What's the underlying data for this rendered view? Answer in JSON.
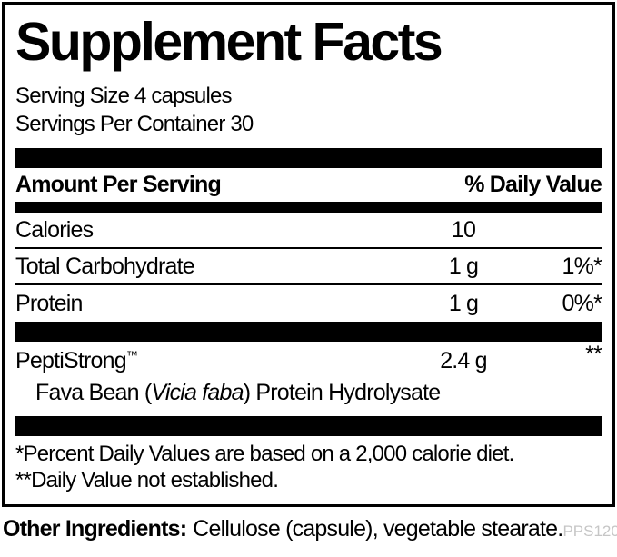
{
  "label": {
    "title": "Supplement Facts",
    "serving_size": "Serving Size 4 capsules",
    "servings_per_container": "Servings Per Container 30",
    "header": {
      "amount_per_serving": "Amount Per Serving",
      "daily_value": "% Daily Value"
    },
    "rows": [
      {
        "name": "Calories",
        "amount": "10",
        "dv": ""
      },
      {
        "name": "Total Carbohydrate",
        "amount": "1 g",
        "dv": "1%*"
      },
      {
        "name": "Protein",
        "amount": "1 g",
        "dv": "0%*"
      }
    ],
    "ingredient": {
      "name": "PeptiStrong",
      "trademark": "™",
      "amount": "2.4 g",
      "dv": "**",
      "sub_prefix": "Fava Bean (",
      "sub_italic": "Vicia faba",
      "sub_suffix": ") Protein Hydrolysate"
    },
    "footnotes": [
      "*Percent Daily Values are based on a 2,000 calorie diet.",
      "**Daily Value not established."
    ]
  },
  "other_ingredients": {
    "label": "Other Ingredients:",
    "text": "Cellulose (capsule), vegetable stearate."
  },
  "product_code": "PPS120",
  "colors": {
    "text": "#000000",
    "bar": "#000000",
    "muted_code": "#c6c6c6",
    "background": "#ffffff"
  }
}
